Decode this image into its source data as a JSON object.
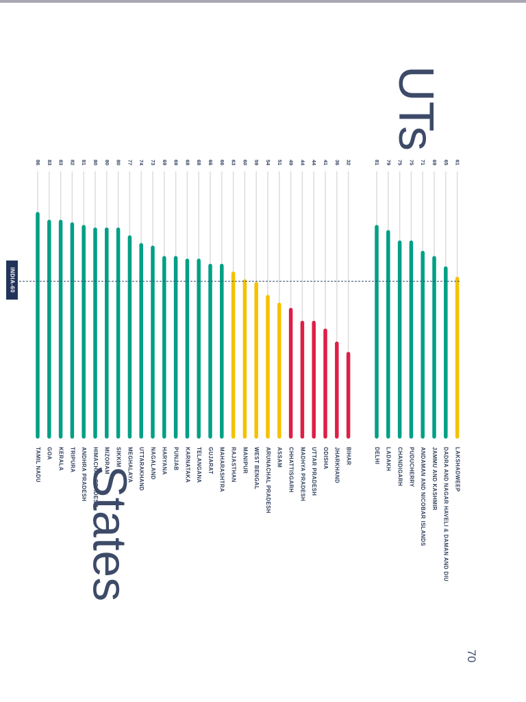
{
  "page": {
    "page_number": "70"
  },
  "chart_data": {
    "type": "bar",
    "orientation": "vertical bars, page rotated 90°",
    "reference_line": {
      "label": "INDIA-60",
      "value": 60
    },
    "colors": {
      "achiever": "#009f86",
      "performer": "#f5c100",
      "aspirant": "#dd1f46",
      "track": "#dcdcdc",
      "reference": "#2f4a6a",
      "text": "#2f3e5c"
    },
    "groups": [
      {
        "title": "States",
        "categories": [
          "TAMIL NADU",
          "GOA",
          "KERALA",
          "TRIPURA",
          "ANDHRA PRADESH",
          "HIMACHAL PRADESH",
          "MIZORAM",
          "SIKKIM",
          "MEGHALAYA",
          "UTTARAKHAND",
          "NAGALAND",
          "HARYANA",
          "PUNJAB",
          "KARNATAKA",
          "TELANGANA",
          "GUJARAT",
          "MAHARASHTRA",
          "RAJASTHAN",
          "MANIPUR",
          "WEST BENGAL",
          "ARUNACHAL PRADESH",
          "ASSAM",
          "CHHATTISGARH",
          "MADHYA PRADESH",
          "UTTAR PRADESH",
          "ODISHA",
          "JHARKHAND",
          "BIHAR"
        ],
        "values": [
          86,
          83,
          83,
          82,
          81,
          80,
          80,
          80,
          77,
          74,
          73,
          69,
          69,
          68,
          68,
          66,
          66,
          63,
          60,
          59,
          54,
          51,
          49,
          44,
          44,
          41,
          36,
          32
        ]
      },
      {
        "title": "UTs",
        "categories": [
          "DELHI",
          "LADAKH",
          "CHANDIGARH",
          "PUDUCHERRY",
          "ANDAMAN AND NICOBAR ISLANDS",
          "JAMMU AND KASHMIR",
          "DADRA AND NAGAR HAVELI & DAMAN AND DIU",
          "LAKSHADWEEP"
        ],
        "values": [
          81,
          79,
          75,
          75,
          71,
          69,
          65,
          61
        ]
      }
    ]
  }
}
